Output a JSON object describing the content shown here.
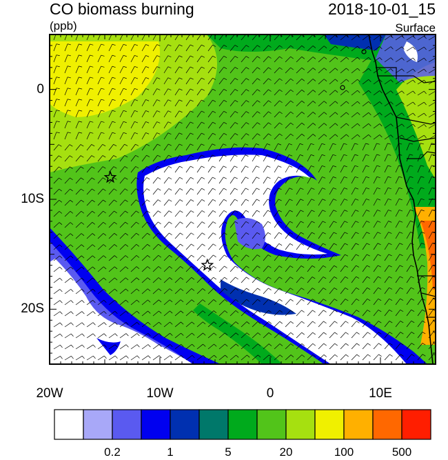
{
  "header": {
    "title": "CO biomass burning",
    "units": "(ppb)",
    "timestamp": "2018-10-01_15",
    "level": "Surface"
  },
  "map": {
    "x_tick_labels": [
      "20W",
      "10W",
      "0",
      "10E"
    ],
    "x_tick_values": [
      -20,
      -10,
      0,
      10
    ],
    "y_tick_labels": [
      "0",
      "10S",
      "20S"
    ],
    "y_tick_values": [
      0,
      -10,
      -20
    ],
    "lon_range": [
      -20,
      15
    ],
    "lat_range": [
      -25,
      5
    ],
    "markers": [
      {
        "name": "star-marker-1",
        "lon": -14.5,
        "lat": -8
      },
      {
        "name": "star-marker-2",
        "lon": -5.7,
        "lat": -16
      }
    ]
  },
  "colorbar": {
    "colors": [
      "#ffffff",
      "#a8a8f8",
      "#5a5af0",
      "#0000f0",
      "#0030b0",
      "#00786a",
      "#00aa1c",
      "#52c41a",
      "#a6e010",
      "#f0f000",
      "#ffb000",
      "#ff6800",
      "#ff1e00"
    ],
    "labels": [
      "0.2",
      "1",
      "5",
      "20",
      "100",
      "500"
    ],
    "label_boundaries": [
      2,
      4,
      6,
      8,
      10,
      12
    ]
  },
  "colors": {
    "ocean_low": "#ffffff",
    "plume_core": "#52c41a",
    "land_high": "#ff6800"
  }
}
